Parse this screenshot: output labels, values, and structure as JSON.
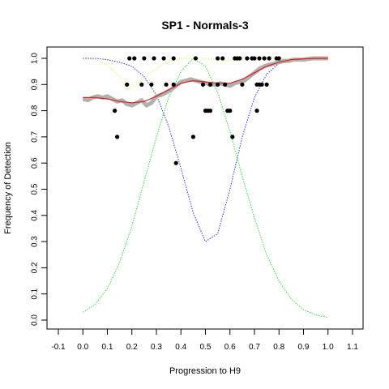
{
  "chart_data": {
    "type": "scatter",
    "title": "SP1 - Normals-3",
    "xlabel": "Progression to H9",
    "ylabel": "Frequency of Detection",
    "xlim": [
      -0.1,
      1.1
    ],
    "ylim": [
      0.0,
      1.0
    ],
    "x_ticks": [
      "-0.1",
      "0.0",
      "0.1",
      "0.2",
      "0.3",
      "0.4",
      "0.5",
      "0.6",
      "0.7",
      "0.8",
      "0.9",
      "1.0",
      "1.1"
    ],
    "y_ticks": [
      "0.0",
      "0.1",
      "0.2",
      "0.3",
      "0.4",
      "0.5",
      "0.6",
      "0.7",
      "0.8",
      "0.9",
      "1.0"
    ],
    "colors": {
      "points": "#000000",
      "smooth_raw": "#b0b0b0",
      "fit": "#e02020",
      "blue_curve": "#3333ee",
      "green_curve": "#33dd33",
      "yellow_curve": "#eeee66"
    },
    "series": [
      {
        "type": "scatter",
        "points": [
          [
            0.13,
            0.8
          ],
          [
            0.14,
            0.7
          ],
          [
            0.18,
            0.9
          ],
          [
            0.19,
            1.0
          ],
          [
            0.21,
            1.0
          ],
          [
            0.24,
            0.9
          ],
          [
            0.25,
            1.0
          ],
          [
            0.28,
            0.9
          ],
          [
            0.29,
            1.0
          ],
          [
            0.33,
            1.0
          ],
          [
            0.34,
            0.9
          ],
          [
            0.37,
            1.0
          ],
          [
            0.37,
            0.9
          ],
          [
            0.38,
            0.6
          ],
          [
            0.45,
            0.7
          ],
          [
            0.46,
            1.0
          ],
          [
            0.49,
            0.9
          ],
          [
            0.5,
            0.8
          ],
          [
            0.51,
            0.8
          ],
          [
            0.52,
            0.8
          ],
          [
            0.52,
            0.9
          ],
          [
            0.55,
            0.9
          ],
          [
            0.55,
            1.0
          ],
          [
            0.57,
            1.0
          ],
          [
            0.58,
            0.9
          ],
          [
            0.59,
            0.8
          ],
          [
            0.6,
            0.8
          ],
          [
            0.61,
            0.7
          ],
          [
            0.62,
            1.0
          ],
          [
            0.63,
            1.0
          ],
          [
            0.64,
            1.0
          ],
          [
            0.65,
            0.9
          ],
          [
            0.67,
            1.0
          ],
          [
            0.69,
            1.0
          ],
          [
            0.7,
            1.0
          ],
          [
            0.71,
            0.9
          ],
          [
            0.71,
            0.8
          ],
          [
            0.72,
            0.9
          ],
          [
            0.72,
            1.0
          ],
          [
            0.73,
            0.9
          ],
          [
            0.74,
            1.0
          ],
          [
            0.75,
            0.9
          ],
          [
            0.76,
            1.0
          ],
          [
            0.79,
            1.0
          ],
          [
            0.8,
            1.0
          ]
        ]
      },
      {
        "type": "line",
        "style": "thick-jagged",
        "points": [
          [
            0.0,
            0.845
          ],
          [
            0.02,
            0.84
          ],
          [
            0.04,
            0.85
          ],
          [
            0.06,
            0.855
          ],
          [
            0.08,
            0.85
          ],
          [
            0.1,
            0.855
          ],
          [
            0.12,
            0.845
          ],
          [
            0.14,
            0.835
          ],
          [
            0.16,
            0.84
          ],
          [
            0.18,
            0.825
          ],
          [
            0.2,
            0.82
          ],
          [
            0.22,
            0.83
          ],
          [
            0.24,
            0.84
          ],
          [
            0.26,
            0.82
          ],
          [
            0.28,
            0.83
          ],
          [
            0.3,
            0.855
          ],
          [
            0.32,
            0.86
          ],
          [
            0.34,
            0.87
          ],
          [
            0.36,
            0.88
          ],
          [
            0.38,
            0.895
          ],
          [
            0.4,
            0.91
          ],
          [
            0.42,
            0.915
          ],
          [
            0.44,
            0.92
          ],
          [
            0.46,
            0.915
          ],
          [
            0.48,
            0.91
          ],
          [
            0.5,
            0.905
          ],
          [
            0.52,
            0.9
          ],
          [
            0.54,
            0.9
          ],
          [
            0.56,
            0.905
          ],
          [
            0.58,
            0.9
          ],
          [
            0.6,
            0.895
          ],
          [
            0.62,
            0.905
          ],
          [
            0.64,
            0.91
          ],
          [
            0.66,
            0.915
          ],
          [
            0.68,
            0.93
          ],
          [
            0.7,
            0.945
          ],
          [
            0.72,
            0.96
          ],
          [
            0.74,
            0.97
          ],
          [
            0.76,
            0.975
          ],
          [
            0.78,
            0.98
          ],
          [
            0.8,
            0.985
          ],
          [
            0.82,
            0.99
          ],
          [
            0.84,
            0.99
          ],
          [
            0.86,
            0.995
          ],
          [
            0.88,
            0.995
          ],
          [
            0.9,
            0.995
          ],
          [
            0.92,
            0.998
          ],
          [
            0.94,
            1.0
          ],
          [
            0.96,
            1.0
          ],
          [
            0.98,
            1.0
          ],
          [
            1.0,
            1.0
          ]
        ]
      },
      {
        "type": "line",
        "style": "solid",
        "points": [
          [
            0.0,
            0.85
          ],
          [
            0.05,
            0.85
          ],
          [
            0.1,
            0.845
          ],
          [
            0.15,
            0.835
          ],
          [
            0.2,
            0.83
          ],
          [
            0.25,
            0.835
          ],
          [
            0.3,
            0.855
          ],
          [
            0.35,
            0.88
          ],
          [
            0.4,
            0.905
          ],
          [
            0.45,
            0.915
          ],
          [
            0.5,
            0.91
          ],
          [
            0.55,
            0.905
          ],
          [
            0.6,
            0.905
          ],
          [
            0.65,
            0.92
          ],
          [
            0.7,
            0.945
          ],
          [
            0.75,
            0.97
          ],
          [
            0.8,
            0.985
          ],
          [
            0.85,
            0.995
          ],
          [
            0.9,
            0.998
          ],
          [
            0.95,
            1.0
          ],
          [
            1.0,
            1.0
          ]
        ]
      },
      {
        "type": "line",
        "style": "dotted",
        "points": [
          [
            0.0,
            1.0
          ],
          [
            0.05,
            1.0
          ],
          [
            0.1,
            0.995
          ],
          [
            0.15,
            0.985
          ],
          [
            0.2,
            0.97
          ],
          [
            0.25,
            0.93
          ],
          [
            0.3,
            0.86
          ],
          [
            0.35,
            0.74
          ],
          [
            0.4,
            0.58
          ],
          [
            0.45,
            0.41
          ],
          [
            0.5,
            0.3
          ],
          [
            0.55,
            0.33
          ],
          [
            0.6,
            0.5
          ],
          [
            0.65,
            0.7
          ],
          [
            0.7,
            0.85
          ],
          [
            0.75,
            0.94
          ],
          [
            0.8,
            0.98
          ],
          [
            0.85,
            0.995
          ],
          [
            0.9,
            1.0
          ],
          [
            0.95,
            1.0
          ],
          [
            1.0,
            1.0
          ]
        ]
      },
      {
        "type": "line",
        "style": "dotted",
        "points": [
          [
            0.0,
            0.03
          ],
          [
            0.05,
            0.06
          ],
          [
            0.1,
            0.12
          ],
          [
            0.15,
            0.22
          ],
          [
            0.2,
            0.36
          ],
          [
            0.25,
            0.53
          ],
          [
            0.3,
            0.7
          ],
          [
            0.35,
            0.85
          ],
          [
            0.4,
            0.95
          ],
          [
            0.45,
            1.0
          ],
          [
            0.5,
            0.97
          ],
          [
            0.55,
            0.87
          ],
          [
            0.6,
            0.72
          ],
          [
            0.65,
            0.55
          ],
          [
            0.7,
            0.39
          ],
          [
            0.75,
            0.25
          ],
          [
            0.8,
            0.15
          ],
          [
            0.85,
            0.08
          ],
          [
            0.9,
            0.04
          ],
          [
            0.95,
            0.02
          ],
          [
            1.0,
            0.01
          ]
        ]
      },
      {
        "type": "line",
        "style": "dotted",
        "points": [
          [
            0.0,
            1.0
          ],
          [
            0.05,
            0.995
          ],
          [
            0.1,
            0.975
          ],
          [
            0.15,
            0.93
          ],
          [
            0.18,
            0.88
          ],
          [
            0.22,
            0.9
          ],
          [
            0.27,
            0.94
          ],
          [
            0.33,
            0.98
          ],
          [
            0.4,
            1.0
          ],
          [
            0.5,
            1.0
          ],
          [
            0.55,
            0.995
          ],
          [
            0.6,
            0.99
          ],
          [
            0.65,
            0.995
          ],
          [
            0.7,
            1.0
          ],
          [
            0.8,
            1.0
          ],
          [
            1.0,
            1.0
          ]
        ]
      }
    ]
  }
}
